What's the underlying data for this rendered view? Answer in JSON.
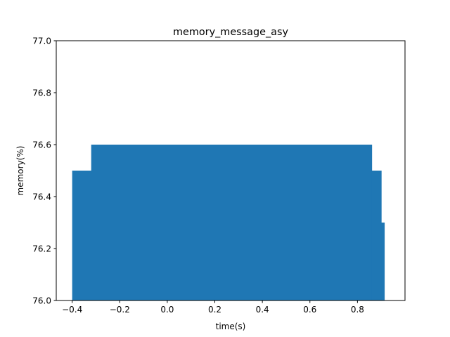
{
  "chart_data": {
    "type": "bar",
    "title": "memory_message_asy",
    "xlabel": "time(s)",
    "ylabel": "memory(%)",
    "xlim": [
      -0.467,
      1.0
    ],
    "ylim": [
      76.0,
      77.0
    ],
    "xticks": [
      "-0.4",
      "-0.2",
      "0.0",
      "0.2",
      "0.4",
      "0.6",
      "0.8"
    ],
    "yticks": [
      "76.0",
      "76.2",
      "76.4",
      "76.6",
      "76.8",
      "77.0"
    ],
    "color": "#1f77b4",
    "grid": false,
    "bars": [
      {
        "x0": -0.4,
        "x1": -0.32,
        "y": 76.5
      },
      {
        "x0": -0.32,
        "x1": 0.86,
        "y": 76.6
      },
      {
        "x0": 0.86,
        "x1": 0.9,
        "y": 76.5
      },
      {
        "x0": 0.9,
        "x1": 0.913,
        "y": 76.3
      }
    ]
  }
}
